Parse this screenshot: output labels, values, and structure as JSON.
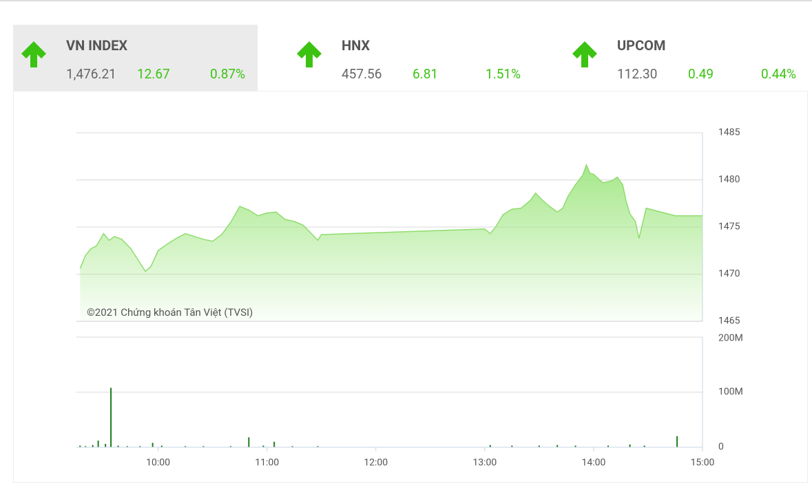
{
  "tabs": [
    {
      "name": "VN INDEX",
      "price": "1,476.21",
      "change": "12.67",
      "percent": "0.87%"
    },
    {
      "name": "HNX",
      "price": "457.56",
      "change": "6.81",
      "percent": "1.51%"
    },
    {
      "name": "UPCOM",
      "price": "112.30",
      "change": "0.49",
      "percent": "0.44%"
    }
  ],
  "chart_data": [
    {
      "type": "area",
      "annotation": "©2021 Chứng khoán Tân Việt (TVSI)",
      "color": "#8fdc6e",
      "grid": true,
      "x": [
        557,
        560,
        563,
        566,
        570,
        573,
        576,
        580,
        585,
        590,
        593,
        596,
        600,
        605,
        610,
        615,
        620,
        625,
        630,
        635,
        640,
        645,
        650,
        655,
        660,
        665,
        670,
        675,
        680,
        685,
        688,
        690,
        780,
        783,
        786,
        790,
        795,
        800,
        805,
        808,
        811,
        815,
        820,
        823,
        826,
        830,
        834,
        836,
        838,
        840,
        845,
        850,
        853,
        856,
        858,
        860,
        863,
        865,
        869,
        885,
        900
      ],
      "values": [
        1470.6,
        1472.0,
        1472.7,
        1473.0,
        1474.3,
        1473.6,
        1474.0,
        1473.7,
        1472.7,
        1471.2,
        1470.3,
        1470.8,
        1472.5,
        1473.2,
        1473.8,
        1474.3,
        1474.0,
        1473.7,
        1473.5,
        1474.2,
        1475.5,
        1477.2,
        1476.8,
        1476.2,
        1476.5,
        1476.6,
        1475.8,
        1475.6,
        1475.2,
        1474.2,
        1473.6,
        1474.2,
        1474.8,
        1474.3,
        1475.0,
        1476.3,
        1476.9,
        1477.0,
        1477.8,
        1478.6,
        1478.0,
        1477.3,
        1476.6,
        1477.0,
        1478.3,
        1479.5,
        1480.5,
        1481.6,
        1480.7,
        1480.6,
        1479.7,
        1479.9,
        1480.3,
        1479.5,
        1477.7,
        1476.4,
        1475.6,
        1473.8,
        1477.0,
        1476.2,
        1476.2
      ],
      "xlim": [
        555,
        900
      ],
      "ylim": [
        1465,
        1485
      ],
      "yticks": [
        1465,
        1470,
        1475,
        1480,
        1485
      ]
    },
    {
      "type": "bar",
      "color": "#1e7d1e",
      "grid": true,
      "x": [
        557,
        560,
        564,
        567,
        571,
        574,
        578,
        583,
        590,
        597,
        602,
        615,
        625,
        640,
        650,
        658,
        664,
        674,
        688,
        783,
        795,
        810,
        820,
        830,
        848,
        860,
        868,
        886
      ],
      "values": [
        3000000,
        2000000,
        4000000,
        12000000,
        6000000,
        108000000,
        3000000,
        2000000,
        2000000,
        8000000,
        3000000,
        2000000,
        2000000,
        2000000,
        18000000,
        3000000,
        10000000,
        2000000,
        2000000,
        4000000,
        3000000,
        3000000,
        4000000,
        3000000,
        3000000,
        5000000,
        3000000,
        20000000
      ],
      "xlim": [
        555,
        900
      ],
      "ylim": [
        0,
        200000000
      ],
      "yticks": [
        0,
        {
          "value": 100000000,
          "label": "100M"
        },
        {
          "value": 200000000,
          "label": "200M"
        }
      ],
      "xticks": [
        {
          "value": 600,
          "label": "10:00"
        },
        {
          "value": 660,
          "label": "11:00"
        },
        {
          "value": 720,
          "label": "12:00"
        },
        {
          "value": 780,
          "label": "13:00"
        },
        {
          "value": 840,
          "label": "14:00"
        },
        {
          "value": 900,
          "label": "15:00"
        }
      ]
    }
  ]
}
